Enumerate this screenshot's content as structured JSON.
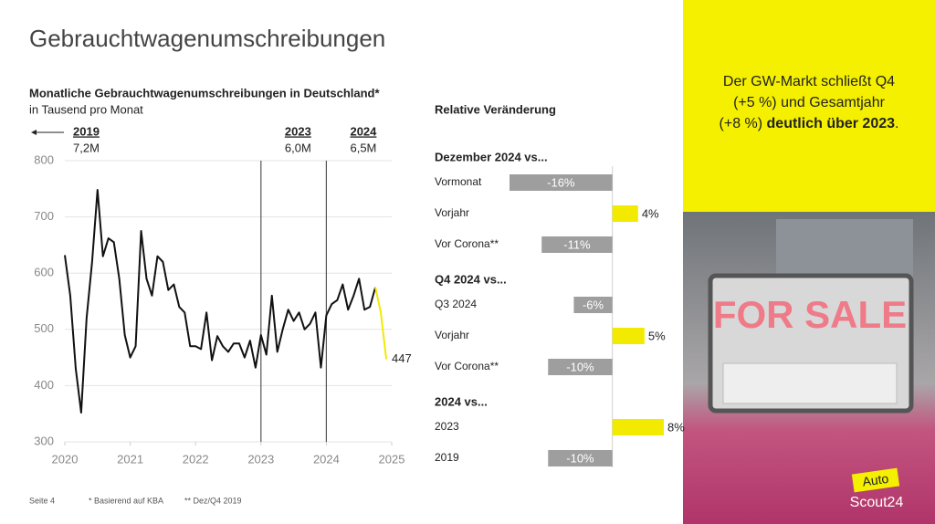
{
  "page_title": "Gebrauchtwagenumschreibungen",
  "chart_data": [
    {
      "type": "line",
      "title": "Monatliche Gebrauchtwagenumschreibungen in Deutschland*",
      "subtitle": "in Tausend pro Monat",
      "x": [
        2020,
        2020.083,
        2020.167,
        2020.25,
        2020.333,
        2020.417,
        2020.5,
        2020.583,
        2020.667,
        2020.75,
        2020.833,
        2020.917,
        2021,
        2021.083,
        2021.167,
        2021.25,
        2021.333,
        2021.417,
        2021.5,
        2021.583,
        2021.667,
        2021.75,
        2021.833,
        2021.917,
        2022,
        2022.083,
        2022.167,
        2022.25,
        2022.333,
        2022.417,
        2022.5,
        2022.583,
        2022.667,
        2022.75,
        2022.833,
        2022.917,
        2023,
        2023.083,
        2023.167,
        2023.25,
        2023.333,
        2023.417,
        2023.5,
        2023.583,
        2023.667,
        2023.75,
        2023.833,
        2023.917,
        2024,
        2024.083,
        2024.167,
        2024.25,
        2024.333,
        2024.417,
        2024.5,
        2024.583,
        2024.667,
        2024.75,
        2024.833,
        2024.917
      ],
      "series": [
        {
          "color": "#111111",
          "values": [
            632,
            560,
            430,
            352,
            520,
            620,
            748,
            630,
            662,
            655,
            590,
            490,
            450,
            470,
            675,
            590,
            560,
            630,
            620,
            570,
            580,
            540,
            530,
            470,
            470,
            465,
            530,
            445,
            488,
            470,
            460,
            475,
            475,
            450,
            480,
            432,
            490,
            455,
            560,
            460,
            500,
            535,
            515,
            530,
            500,
            510,
            530,
            432,
            525,
            545,
            552,
            580,
            535,
            560,
            590,
            535,
            540,
            575,
            null,
            null
          ]
        },
        {
          "color": "#f2ea00",
          "values": [
            null,
            null,
            null,
            null,
            null,
            null,
            null,
            null,
            null,
            null,
            null,
            null,
            null,
            null,
            null,
            null,
            null,
            null,
            null,
            null,
            null,
            null,
            null,
            null,
            null,
            null,
            null,
            null,
            null,
            null,
            null,
            null,
            null,
            null,
            null,
            null,
            null,
            null,
            null,
            null,
            null,
            null,
            null,
            null,
            null,
            null,
            null,
            null,
            null,
            null,
            null,
            null,
            null,
            null,
            null,
            null,
            null,
            575,
            530,
            447
          ],
          "value_labels": [
            null,
            null,
            null,
            null,
            null,
            null,
            null,
            null,
            null,
            null,
            null,
            null,
            null,
            null,
            null,
            null,
            null,
            null,
            null,
            null,
            null,
            null,
            null,
            null,
            null,
            null,
            null,
            null,
            null,
            null,
            null,
            null,
            null,
            null,
            null,
            null,
            null,
            null,
            null,
            null,
            null,
            null,
            null,
            null,
            null,
            null,
            null,
            null,
            null,
            null,
            null,
            null,
            null,
            null,
            null,
            null,
            null,
            null,
            null,
            "447"
          ]
        }
      ],
      "xlim": [
        2020,
        2025
      ],
      "xticks": [
        2020,
        2021,
        2022,
        2023,
        2024,
        2025
      ],
      "ylim": [
        300,
        800
      ],
      "yticks": [
        300,
        400,
        500,
        600,
        700,
        800
      ],
      "grid": true,
      "reference": {
        "label": "2019",
        "value": "7,2M"
      },
      "markers": [
        {
          "x": 2023,
          "label": "2023",
          "value": "6,0M"
        },
        {
          "x": 2024,
          "label": "2024",
          "value": "6,5M"
        }
      ]
    },
    {
      "type": "hbar",
      "title": "Relative Veränderung",
      "xlim": [
        -16,
        8
      ],
      "positive_color": "#f2ea00",
      "negative_color": "#9e9e9e",
      "groups": [
        {
          "title": "Dezember 2024 vs...",
          "categories": [
            "Vormonat",
            "Vorjahr",
            "Vor Corona**"
          ],
          "values": [
            -16,
            4,
            -11
          ],
          "value_labels": [
            "-16%",
            "4%",
            "-11%"
          ]
        },
        {
          "title": "Q4 2024 vs...",
          "categories": [
            "Q3 2024",
            "Vorjahr",
            "Vor Corona**"
          ],
          "values": [
            -6,
            5,
            -10
          ],
          "value_labels": [
            "-6%",
            "5%",
            "-10%"
          ]
        },
        {
          "title": "2024 vs...",
          "categories": [
            "2023",
            "2019"
          ],
          "values": [
            8,
            -10
          ],
          "value_labels": [
            "8%",
            "-10%"
          ]
        }
      ]
    }
  ],
  "callout": {
    "line1": "Der GW-Markt schließt Q4",
    "line2": "(+5 %) und Gesamtjahr",
    "line3": "(+8 %) ",
    "line3_bold": "deutlich über 2023",
    "line3_end": "."
  },
  "photo": {
    "sign": "FOR SALE"
  },
  "logo": {
    "top": "Auto",
    "bottom": "Scout24"
  },
  "footer": {
    "page": "Seite 4",
    "note1": "* Basierend auf KBA",
    "note2": "** Dez/Q4 2019"
  }
}
